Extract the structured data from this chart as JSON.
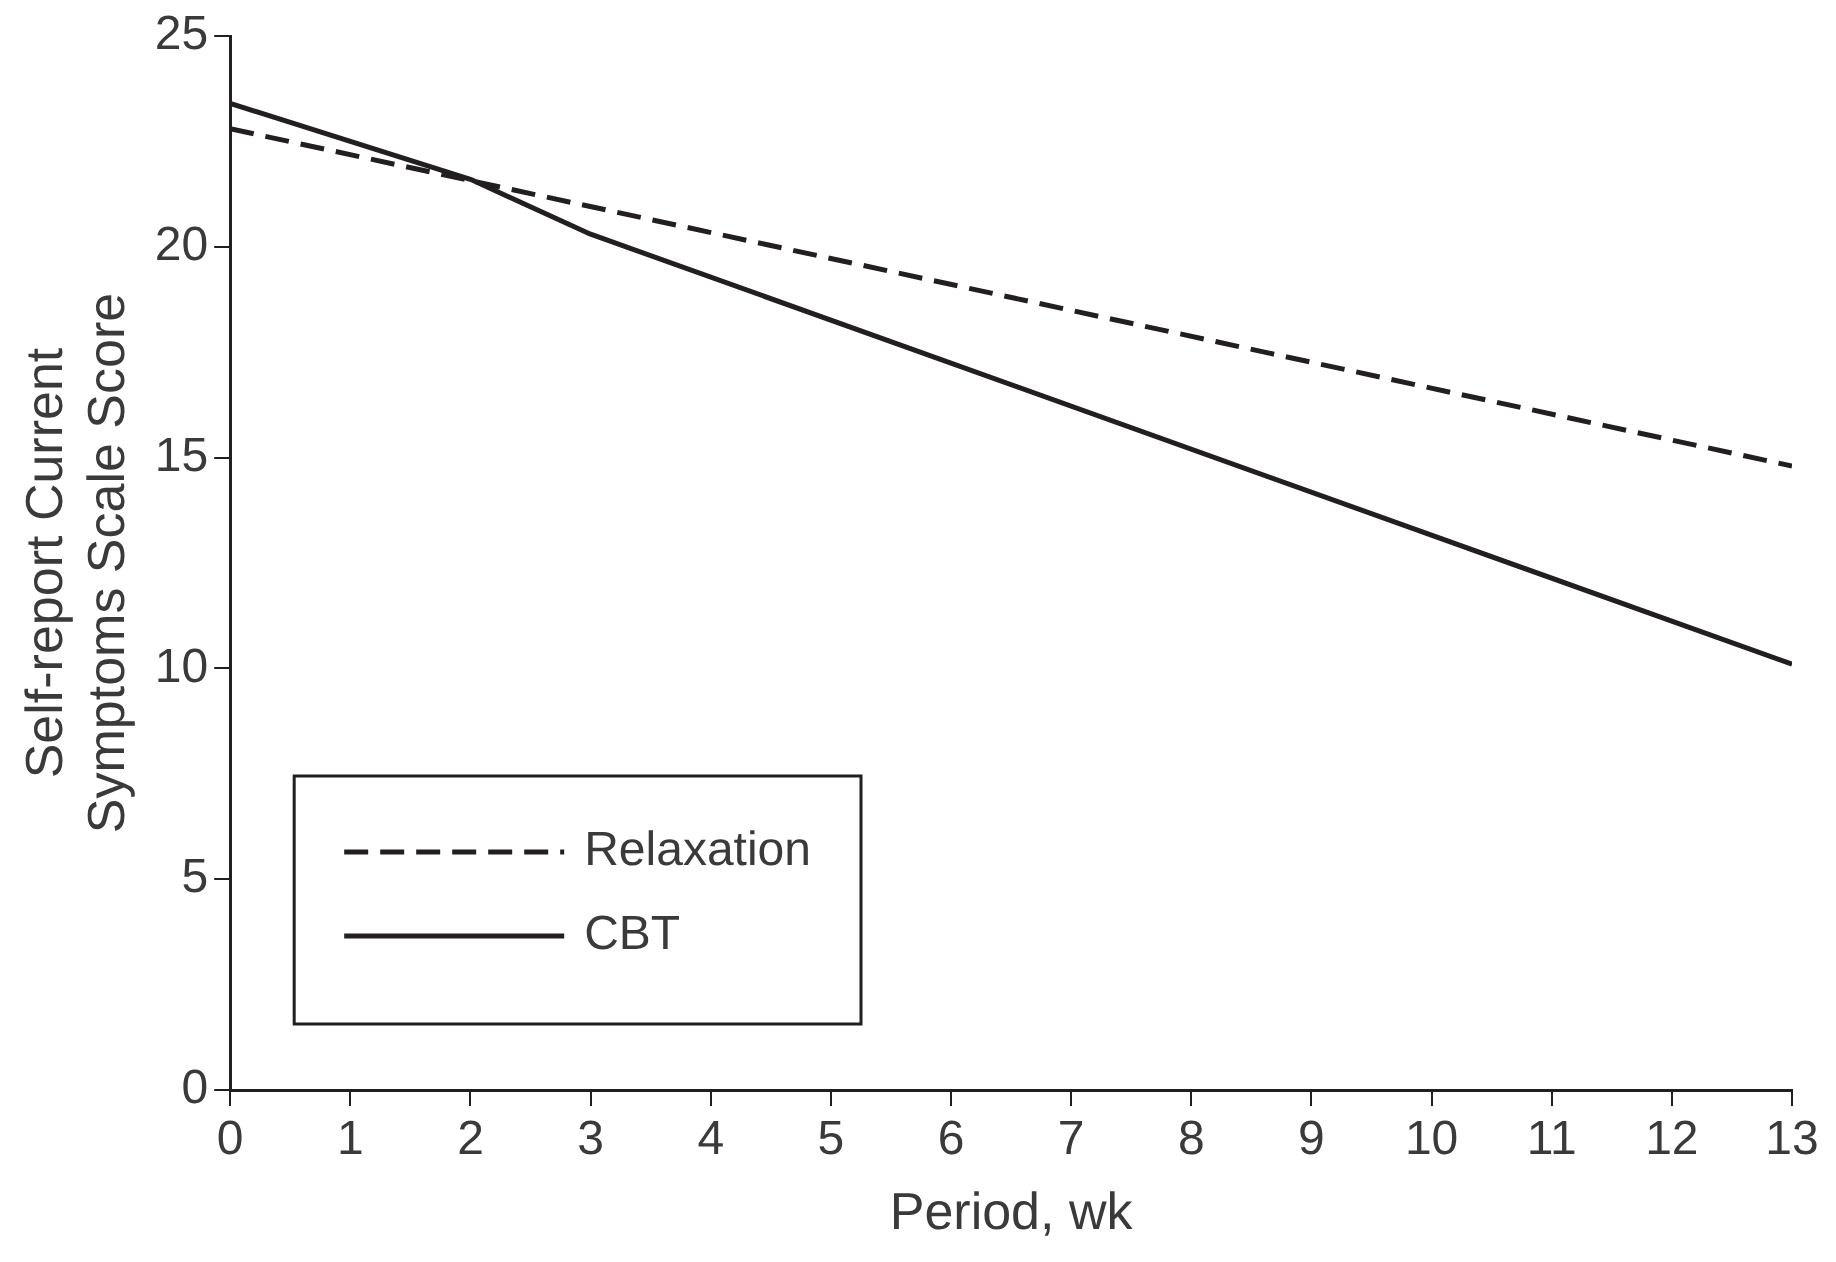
{
  "chart_data": {
    "type": "line",
    "xlabel": "Period, wk",
    "ylabel": "Self-report Current Symptoms Scale Score",
    "series": [
      {
        "name": "Relaxation",
        "color": "#231f20",
        "line_style": "dashed",
        "x": [
          0,
          13
        ],
        "values": [
          22.8,
          14.8
        ]
      },
      {
        "name": "CBT",
        "color": "#231f20",
        "line_style": "solid",
        "x": [
          0,
          2,
          3,
          13
        ],
        "values": [
          23.4,
          21.6,
          20.3,
          10.1
        ]
      }
    ],
    "xlim": [
      0,
      13
    ],
    "xticks": [
      0,
      1,
      2,
      3,
      4,
      5,
      6,
      7,
      8,
      9,
      10,
      11,
      12,
      13
    ],
    "ylim": [
      0,
      25
    ],
    "yticks": [
      0,
      5,
      10,
      15,
      20,
      25
    ],
    "grid": false,
    "legend": "bottom left",
    "marker": "none"
  }
}
